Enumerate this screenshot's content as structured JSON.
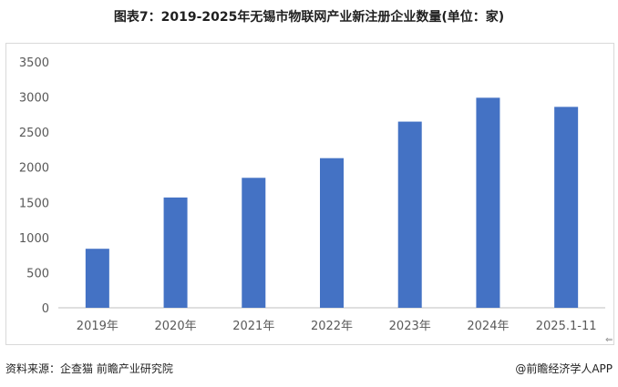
{
  "title": "图表7：2019-2025年无锡市物联网产业新注册企业数量(单位：家)",
  "footer": {
    "source": "资料来源：企查猫 前瞻产业研究院",
    "brand": "@前瞻经济学人APP"
  },
  "colors": {
    "bar": "#4472C4",
    "axis": "#bfbfbf",
    "tick_text": "#595959"
  },
  "chart_data": {
    "type": "bar",
    "title": "图表7：2019-2025年无锡市物联网产业新注册企业数量(单位：家)",
    "xlabel": "",
    "ylabel": "",
    "categories": [
      "2019年",
      "2020年",
      "2021年",
      "2022年",
      "2023年",
      "2024年",
      "2025.1-11"
    ],
    "values": [
      840,
      1570,
      1850,
      2130,
      2650,
      2990,
      2860
    ],
    "yticks": [
      0,
      500,
      1000,
      1500,
      2000,
      2500,
      3000,
      3500
    ],
    "ylim": [
      0,
      3500
    ],
    "grid": false,
    "legend": "none"
  }
}
